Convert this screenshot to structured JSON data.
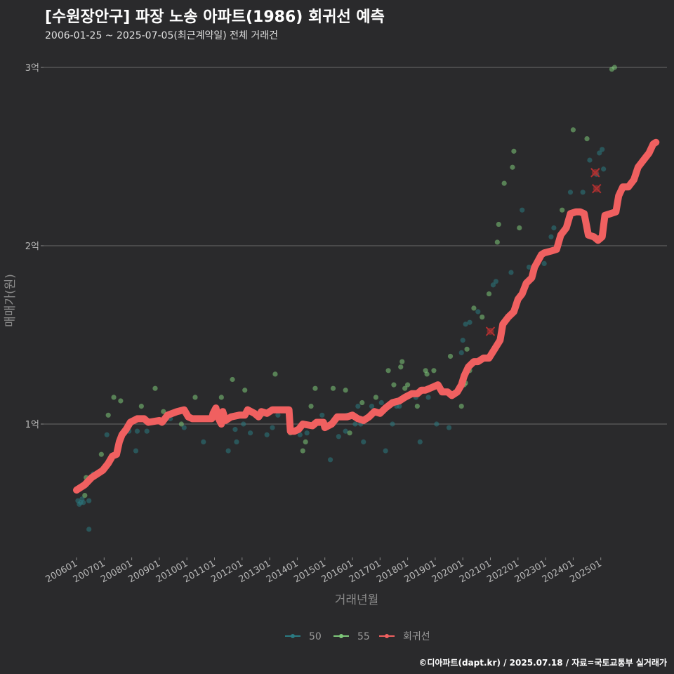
{
  "header": {
    "title": "[수원장안구] 파장 노송 아파트(1986) 회귀선 예측",
    "subtitle": "2006-01-25 ~ 2025-07-05(최근계약일) 전체 거래건"
  },
  "footer": {
    "credit": "©디아파트(dapt.kr) / 2025.07.18 / 자료=국토교통부 실거래가"
  },
  "colors": {
    "series50": "#2a7a82",
    "series55": "#7ec87a",
    "regression": "#f06060",
    "excluded": "#b03030"
  },
  "chart_data": {
    "type": "scatter",
    "xlabel": "거래년월",
    "ylabel": "매매가(원)",
    "xlim": [
      2005.5,
      2027.05
    ],
    "ylim": [
      0.3,
      3.1
    ],
    "y_ticks": [
      {
        "value": 1,
        "label": "1억"
      },
      {
        "value": 2,
        "label": "2억"
      },
      {
        "value": 3,
        "label": "3억"
      }
    ],
    "x_ticks": [
      {
        "value": 2006,
        "label": "200601"
      },
      {
        "value": 2007,
        "label": "200701"
      },
      {
        "value": 2008,
        "label": "200801"
      },
      {
        "value": 2009,
        "label": "200901"
      },
      {
        "value": 2010,
        "label": "201001"
      },
      {
        "value": 2011,
        "label": "201101"
      },
      {
        "value": 2012,
        "label": "201201"
      },
      {
        "value": 2013,
        "label": "201301"
      },
      {
        "value": 2014,
        "label": "201401"
      },
      {
        "value": 2015,
        "label": "201501"
      },
      {
        "value": 2016,
        "label": "201601"
      },
      {
        "value": 2017,
        "label": "201701"
      },
      {
        "value": 2018,
        "label": "201801"
      },
      {
        "value": 2019,
        "label": "201901"
      },
      {
        "value": 2020,
        "label": "202001"
      },
      {
        "value": 2021,
        "label": "202101"
      },
      {
        "value": 2022,
        "label": "202201"
      },
      {
        "value": 2023,
        "label": "202301"
      },
      {
        "value": 2024,
        "label": "202401"
      },
      {
        "value": 2025,
        "label": "202501"
      }
    ],
    "legend": [
      {
        "name": "50",
        "color": "#2a7a82"
      },
      {
        "name": "55",
        "color": "#7ec87a"
      },
      {
        "name": "회귀선",
        "color": "#f06060"
      }
    ],
    "series": [
      {
        "name": "50",
        "points": [
          [
            2006.05,
            0.57
          ],
          [
            2006.1,
            0.55
          ],
          [
            2006.15,
            0.56
          ],
          [
            2006.2,
            0.58
          ],
          [
            2006.25,
            0.56
          ],
          [
            2006.45,
            0.41
          ],
          [
            2006.45,
            0.57
          ],
          [
            2006.6,
            0.72
          ],
          [
            2007.1,
            0.94
          ],
          [
            2007.25,
            0.8
          ],
          [
            2007.5,
            0.88
          ],
          [
            2007.9,
            0.96
          ],
          [
            2008.15,
            0.85
          ],
          [
            2008.2,
            0.96
          ],
          [
            2008.55,
            0.96
          ],
          [
            2009.4,
            1.03
          ],
          [
            2009.9,
            0.98
          ],
          [
            2010.6,
            0.9
          ],
          [
            2011.05,
            1.05
          ],
          [
            2011.5,
            0.85
          ],
          [
            2011.75,
            0.97
          ],
          [
            2011.8,
            0.9
          ],
          [
            2012.05,
            1.0
          ],
          [
            2012.3,
            0.95
          ],
          [
            2012.55,
            1.05
          ],
          [
            2012.9,
            0.94
          ],
          [
            2013.1,
            0.98
          ],
          [
            2013.3,
            1.05
          ],
          [
            2014.1,
            0.94
          ],
          [
            2014.35,
            0.95
          ],
          [
            2014.9,
            1.05
          ],
          [
            2015.05,
            0.98
          ],
          [
            2015.2,
            0.8
          ],
          [
            2015.5,
            0.93
          ],
          [
            2015.75,
            0.96
          ],
          [
            2015.8,
            1.05
          ],
          [
            2016.1,
            1.0
          ],
          [
            2016.2,
            1.1
          ],
          [
            2016.3,
            1.0
          ],
          [
            2016.4,
            0.9
          ],
          [
            2016.7,
            1.1
          ],
          [
            2017.05,
            1.12
          ],
          [
            2017.2,
            0.85
          ],
          [
            2017.45,
            1.0
          ],
          [
            2017.6,
            1.1
          ],
          [
            2017.7,
            1.1
          ],
          [
            2018.3,
            1.15
          ],
          [
            2018.45,
            0.9
          ],
          [
            2018.75,
            1.15
          ],
          [
            2019.05,
            1.0
          ],
          [
            2019.5,
            0.98
          ],
          [
            2019.95,
            1.4
          ],
          [
            2020.0,
            1.47
          ],
          [
            2020.1,
            1.56
          ],
          [
            2020.25,
            1.57
          ],
          [
            2020.55,
            1.63
          ],
          [
            2021.1,
            1.78
          ],
          [
            2021.2,
            1.8
          ],
          [
            2021.75,
            1.85
          ],
          [
            2022.15,
            2.2
          ],
          [
            2022.4,
            1.88
          ],
          [
            2022.95,
            1.9
          ],
          [
            2023.2,
            2.05
          ],
          [
            2023.3,
            2.1
          ],
          [
            2023.9,
            2.3
          ],
          [
            2024.35,
            2.3
          ],
          [
            2024.6,
            2.48
          ],
          [
            2024.85,
            2.4
          ],
          [
            2024.95,
            2.52
          ],
          [
            2025.05,
            2.54
          ],
          [
            2025.1,
            2.43
          ]
        ]
      },
      {
        "name": "55",
        "points": [
          [
            2006.3,
            0.6
          ],
          [
            2006.35,
            0.7
          ],
          [
            2006.9,
            0.83
          ],
          [
            2007.15,
            1.05
          ],
          [
            2007.35,
            1.15
          ],
          [
            2007.6,
            1.13
          ],
          [
            2007.75,
            0.95
          ],
          [
            2008.35,
            1.1
          ],
          [
            2008.85,
            1.2
          ],
          [
            2009.15,
            1.07
          ],
          [
            2009.8,
            1.0
          ],
          [
            2010.3,
            1.15
          ],
          [
            2011.25,
            1.15
          ],
          [
            2011.65,
            1.25
          ],
          [
            2012.1,
            1.19
          ],
          [
            2012.7,
            1.05
          ],
          [
            2013.2,
            1.28
          ],
          [
            2013.75,
            0.95
          ],
          [
            2014.2,
            0.85
          ],
          [
            2014.3,
            0.9
          ],
          [
            2014.5,
            1.1
          ],
          [
            2014.65,
            1.2
          ],
          [
            2015.3,
            1.2
          ],
          [
            2015.75,
            1.19
          ],
          [
            2015.9,
            0.95
          ],
          [
            2016.35,
            1.12
          ],
          [
            2016.85,
            1.15
          ],
          [
            2017.3,
            1.3
          ],
          [
            2017.5,
            1.22
          ],
          [
            2017.75,
            1.32
          ],
          [
            2017.8,
            1.35
          ],
          [
            2017.9,
            1.2
          ],
          [
            2018.0,
            1.22
          ],
          [
            2018.35,
            1.1
          ],
          [
            2018.65,
            1.3
          ],
          [
            2018.7,
            1.28
          ],
          [
            2018.95,
            1.3
          ],
          [
            2019.55,
            1.38
          ],
          [
            2019.95,
            1.1
          ],
          [
            2020.05,
            1.22
          ],
          [
            2020.1,
            1.23
          ],
          [
            2020.15,
            1.42
          ],
          [
            2020.25,
            1.3
          ],
          [
            2020.4,
            1.65
          ],
          [
            2020.7,
            1.6
          ],
          [
            2020.95,
            1.73
          ],
          [
            2021.25,
            2.02
          ],
          [
            2021.3,
            2.12
          ],
          [
            2021.5,
            2.35
          ],
          [
            2021.8,
            2.44
          ],
          [
            2021.85,
            2.53
          ],
          [
            2022.05,
            2.1
          ],
          [
            2023.6,
            2.2
          ],
          [
            2024.0,
            2.65
          ],
          [
            2024.5,
            2.6
          ],
          [
            2025.4,
            2.99
          ],
          [
            2025.5,
            3.0
          ]
        ]
      },
      {
        "name": "회귀선",
        "points": [
          [
            2006.0,
            0.63
          ],
          [
            2006.3,
            0.66
          ],
          [
            2006.55,
            0.7
          ],
          [
            2006.75,
            0.72
          ],
          [
            2006.95,
            0.74
          ],
          [
            2007.15,
            0.78
          ],
          [
            2007.3,
            0.82
          ],
          [
            2007.45,
            0.83
          ],
          [
            2007.55,
            0.9
          ],
          [
            2007.65,
            0.94
          ],
          [
            2007.8,
            0.97
          ],
          [
            2007.95,
            1.01
          ],
          [
            2008.2,
            1.03
          ],
          [
            2008.45,
            1.03
          ],
          [
            2008.6,
            1.01
          ],
          [
            2009.0,
            1.02
          ],
          [
            2009.1,
            1.01
          ],
          [
            2009.3,
            1.05
          ],
          [
            2009.65,
            1.07
          ],
          [
            2009.9,
            1.08
          ],
          [
            2010.05,
            1.04
          ],
          [
            2010.2,
            1.03
          ],
          [
            2010.6,
            1.03
          ],
          [
            2010.9,
            1.03
          ],
          [
            2010.95,
            1.06
          ],
          [
            2011.05,
            1.09
          ],
          [
            2011.15,
            1.03
          ],
          [
            2011.25,
            1.0
          ],
          [
            2011.3,
            1.07
          ],
          [
            2011.4,
            1.02
          ],
          [
            2011.6,
            1.04
          ],
          [
            2011.9,
            1.05
          ],
          [
            2012.1,
            1.05
          ],
          [
            2012.2,
            1.08
          ],
          [
            2012.45,
            1.06
          ],
          [
            2012.6,
            1.04
          ],
          [
            2012.7,
            1.07
          ],
          [
            2012.9,
            1.06
          ],
          [
            2013.1,
            1.08
          ],
          [
            2013.4,
            1.08
          ],
          [
            2013.7,
            1.08
          ],
          [
            2013.75,
            0.96
          ],
          [
            2013.9,
            0.96
          ],
          [
            2014.05,
            0.97
          ],
          [
            2014.2,
            1.0
          ],
          [
            2014.55,
            0.99
          ],
          [
            2014.7,
            1.01
          ],
          [
            2014.95,
            1.01
          ],
          [
            2015.0,
            0.98
          ],
          [
            2015.25,
            1.0
          ],
          [
            2015.45,
            1.04
          ],
          [
            2015.8,
            1.04
          ],
          [
            2016.0,
            1.05
          ],
          [
            2016.2,
            1.03
          ],
          [
            2016.4,
            1.02
          ],
          [
            2016.6,
            1.04
          ],
          [
            2016.8,
            1.07
          ],
          [
            2017.0,
            1.06
          ],
          [
            2017.2,
            1.09
          ],
          [
            2017.45,
            1.12
          ],
          [
            2017.7,
            1.13
          ],
          [
            2017.9,
            1.15
          ],
          [
            2018.15,
            1.17
          ],
          [
            2018.35,
            1.17
          ],
          [
            2018.5,
            1.19
          ],
          [
            2018.65,
            1.19
          ],
          [
            2018.95,
            1.21
          ],
          [
            2019.1,
            1.22
          ],
          [
            2019.25,
            1.18
          ],
          [
            2019.45,
            1.18
          ],
          [
            2019.6,
            1.16
          ],
          [
            2019.8,
            1.18
          ],
          [
            2019.95,
            1.22
          ],
          [
            2020.05,
            1.27
          ],
          [
            2020.2,
            1.32
          ],
          [
            2020.4,
            1.35
          ],
          [
            2020.55,
            1.35
          ],
          [
            2020.75,
            1.37
          ],
          [
            2020.95,
            1.37
          ],
          [
            2021.15,
            1.42
          ],
          [
            2021.35,
            1.47
          ],
          [
            2021.45,
            1.56
          ],
          [
            2021.65,
            1.6
          ],
          [
            2021.85,
            1.63
          ],
          [
            2022.0,
            1.7
          ],
          [
            2022.15,
            1.73
          ],
          [
            2022.3,
            1.79
          ],
          [
            2022.5,
            1.82
          ],
          [
            2022.6,
            1.88
          ],
          [
            2022.85,
            1.95
          ],
          [
            2022.95,
            1.96
          ],
          [
            2023.2,
            1.97
          ],
          [
            2023.4,
            1.98
          ],
          [
            2023.55,
            2.06
          ],
          [
            2023.75,
            2.1
          ],
          [
            2023.9,
            2.18
          ],
          [
            2024.1,
            2.19
          ],
          [
            2024.25,
            2.19
          ],
          [
            2024.4,
            2.18
          ],
          [
            2024.55,
            2.06
          ],
          [
            2024.75,
            2.05
          ],
          [
            2024.9,
            2.03
          ],
          [
            2025.05,
            2.05
          ],
          [
            2025.15,
            2.17
          ],
          [
            2025.35,
            2.18
          ],
          [
            2025.55,
            2.19
          ],
          [
            2025.65,
            2.28
          ],
          [
            2025.8,
            2.33
          ],
          [
            2026.0,
            2.33
          ],
          [
            2026.2,
            2.37
          ],
          [
            2026.35,
            2.44
          ],
          [
            2026.5,
            2.47
          ],
          [
            2026.65,
            2.5
          ],
          [
            2026.75,
            2.52
          ],
          [
            2026.9,
            2.57
          ],
          [
            2027.0,
            2.58
          ]
        ]
      },
      {
        "name": "excluded",
        "points": [
          [
            2021.0,
            1.52
          ],
          [
            2024.8,
            2.41
          ],
          [
            2024.85,
            2.32
          ]
        ]
      }
    ]
  }
}
